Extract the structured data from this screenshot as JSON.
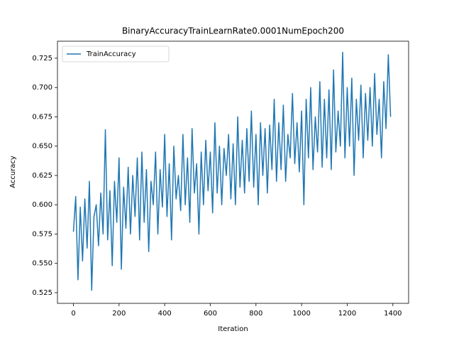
{
  "chart_data": {
    "type": "line",
    "title": "BinaryAccuracyTrainLearnRate0.0001NumEpoch200",
    "x_label": "Iteration",
    "y_label": "Accuracy",
    "x": [
      0,
      10,
      20,
      30,
      40,
      50,
      60,
      70,
      80,
      90,
      100,
      110,
      120,
      130,
      140,
      150,
      160,
      170,
      180,
      190,
      200,
      210,
      220,
      230,
      240,
      250,
      260,
      270,
      280,
      290,
      300,
      310,
      320,
      330,
      340,
      350,
      360,
      370,
      380,
      390,
      400,
      410,
      420,
      430,
      440,
      450,
      460,
      470,
      480,
      490,
      500,
      510,
      520,
      530,
      540,
      550,
      560,
      570,
      580,
      590,
      600,
      610,
      620,
      630,
      640,
      650,
      660,
      670,
      680,
      690,
      700,
      710,
      720,
      730,
      740,
      750,
      760,
      770,
      780,
      790,
      800,
      810,
      820,
      830,
      840,
      850,
      860,
      870,
      880,
      890,
      900,
      910,
      920,
      930,
      940,
      950,
      960,
      970,
      980,
      990,
      1000,
      1010,
      1020,
      1030,
      1040,
      1050,
      1060,
      1070,
      1080,
      1090,
      1100,
      1110,
      1120,
      1130,
      1140,
      1150,
      1160,
      1170,
      1180,
      1190,
      1200,
      1210,
      1220,
      1230,
      1240,
      1250,
      1260,
      1270,
      1280,
      1290,
      1300,
      1310,
      1320,
      1330,
      1340,
      1350,
      1360,
      1370,
      1380,
      1390
    ],
    "series": [
      {
        "name": "TrainAccuracy",
        "color": "#1f77b4",
        "values": [
          0.577,
          0.607,
          0.536,
          0.598,
          0.552,
          0.605,
          0.563,
          0.62,
          0.527,
          0.59,
          0.6,
          0.565,
          0.61,
          0.575,
          0.664,
          0.57,
          0.612,
          0.548,
          0.62,
          0.585,
          0.64,
          0.545,
          0.615,
          0.58,
          0.632,
          0.575,
          0.625,
          0.59,
          0.64,
          0.57,
          0.645,
          0.585,
          0.63,
          0.56,
          0.62,
          0.6,
          0.645,
          0.575,
          0.63,
          0.598,
          0.66,
          0.59,
          0.635,
          0.57,
          0.65,
          0.605,
          0.625,
          0.595,
          0.66,
          0.6,
          0.64,
          0.585,
          0.665,
          0.61,
          0.635,
          0.575,
          0.645,
          0.6,
          0.655,
          0.612,
          0.645,
          0.593,
          0.67,
          0.61,
          0.65,
          0.6,
          0.648,
          0.625,
          0.66,
          0.605,
          0.652,
          0.6,
          0.675,
          0.615,
          0.655,
          0.61,
          0.665,
          0.62,
          0.68,
          0.615,
          0.66,
          0.6,
          0.67,
          0.625,
          0.665,
          0.61,
          0.668,
          0.63,
          0.69,
          0.62,
          0.67,
          0.63,
          0.685,
          0.62,
          0.66,
          0.64,
          0.695,
          0.635,
          0.67,
          0.628,
          0.68,
          0.6,
          0.69,
          0.64,
          0.7,
          0.63,
          0.675,
          0.645,
          0.705,
          0.632,
          0.69,
          0.64,
          0.698,
          0.63,
          0.715,
          0.645,
          0.68,
          0.65,
          0.73,
          0.64,
          0.7,
          0.65,
          0.708,
          0.625,
          0.69,
          0.655,
          0.702,
          0.64,
          0.695,
          0.655,
          0.7,
          0.65,
          0.712,
          0.66,
          0.69,
          0.64,
          0.705,
          0.665,
          0.728,
          0.675
        ]
      }
    ],
    "xlim": [
      -69.95,
      1468.95
    ],
    "ylim": [
      0.5159,
      0.7395
    ],
    "xticks": [
      0,
      200,
      400,
      600,
      800,
      1000,
      1200,
      1400
    ],
    "yticks": [
      0.525,
      {
        "value": 0.55,
        "label": "0.550"
      },
      0.575,
      {
        "value": 0.6,
        "label": "0.600"
      },
      0.625,
      {
        "value": 0.65,
        "label": "0.650"
      },
      0.675,
      {
        "value": 0.7,
        "label": "0.700"
      },
      0.725
    ],
    "legend": "upper left"
  }
}
